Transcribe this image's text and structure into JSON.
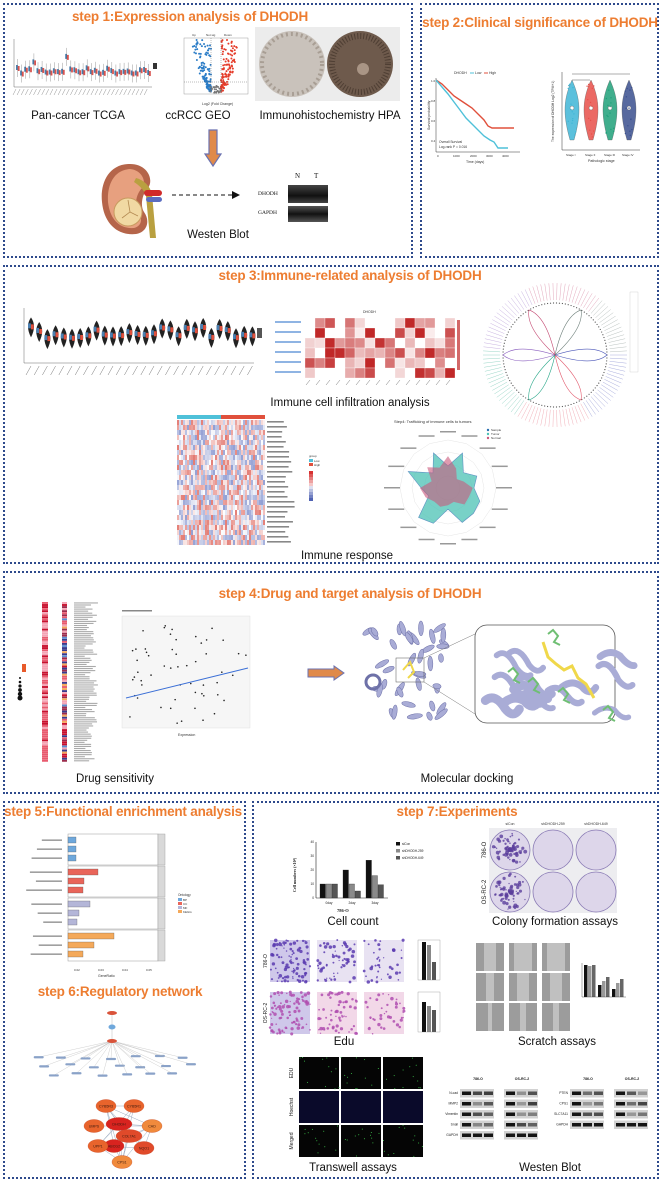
{
  "colors": {
    "accent": "#ed7d31",
    "border": "#2e4a8c",
    "low": "#4fc1d9",
    "high": "#e0503c",
    "protein": "#a9acd6",
    "ligand": "#f0d84a",
    "residue": "#6fbf73"
  },
  "step1": {
    "title": "step 1:Expression analysis of DHODH",
    "label_tcga": "Pan-cancer  TCGA",
    "label_geo": "ccRCC  GEO",
    "label_hpa": "Immunohistochemistry  HPA",
    "label_wb": "Westen Blot",
    "volcano_legend": [
      "Up",
      "Not sig",
      "Down"
    ],
    "volcano_xlabel": "Log2 (Fold Change)",
    "wb_lanes": [
      "N",
      "T"
    ],
    "wb_proteins": [
      "DHODH",
      "GAPDH"
    ]
  },
  "step2": {
    "title": "step 2:Clinical significance of DHODH",
    "km": {
      "legend_title": "DHODH",
      "groups": [
        "Low",
        "High"
      ],
      "annotation_1": "Overall Survival",
      "annotation_2": "Log-rank  P = 0.016",
      "xlabel": "Time (days)",
      "ylabel": "Survival probability",
      "xticks": [
        "0",
        "1000",
        "2000",
        "3000",
        "4000"
      ],
      "yticks": [
        "1.0",
        "0.8",
        "0.6",
        "0.4"
      ]
    },
    "violin": {
      "ylabel": "The expression of DHODH Log2 (TPM+1)",
      "xlabel": "Pathologic stage",
      "groups": [
        "Stage I",
        "Stage II",
        "Stage III",
        "Stage IV"
      ],
      "colors": [
        "#3fb6d6",
        "#e8504a",
        "#1fa07a",
        "#3a4f8f"
      ]
    }
  },
  "step3": {
    "title": "step 3:Immune-related analysis of DHODH",
    "label_infiltration": "Immune cell infiltration analysis",
    "label_response": "Immune response",
    "heatmap_title": "DHODH",
    "radar_title": "Step4: Trafficking of immune cells to tumors",
    "radar_legend": [
      "Sample",
      "Tumor",
      "Normal"
    ],
    "response_legend_title": "group",
    "response_groups": [
      "Low",
      "High"
    ]
  },
  "step4": {
    "title": "step 4:Drug and target analysis of DHODH",
    "label_drug": "Drug sensitivity",
    "label_docking": "Molecular docking",
    "scatter_xlabel": "Expression"
  },
  "step5": {
    "title": "step 5:Functional enrichment analysis",
    "xlabel": "GeneRatio",
    "xticks": [
      "0.02",
      "0.03",
      "0.04",
      "0.05"
    ],
    "legend_title": "Ontology",
    "ontologies": [
      "BP",
      "CC",
      "MF",
      "KEGG"
    ]
  },
  "step6": {
    "title": "step 6:Regulatory network",
    "ppi_nodes": [
      "CYB5R3",
      "CYB5R1",
      "UMPS",
      "DHODH",
      "CAD",
      "ABCG2",
      "COL7A1",
      "UPP1",
      "NQO1",
      "CPS1"
    ]
  },
  "step7": {
    "title": "step 7:Experiments",
    "label_cell_count": "Cell count",
    "label_colony": "Colony formation assays",
    "label_edu": "Edu",
    "label_scratch": "Scratch assays",
    "label_transwell": "Transwell assays",
    "label_wb": "Westen Blot",
    "groups": [
      "siCon",
      "shDHODH-259",
      "shDHODH-649"
    ],
    "cell_lines": [
      "786-O",
      "OS-RC-2"
    ],
    "cell_count": {
      "ylabel": "Cell numbers (×10⁴)",
      "xlabel": "786-O",
      "days": [
        "0day",
        "2day",
        "3day"
      ],
      "yticks": [
        "0",
        "10",
        "20",
        "30",
        "40"
      ],
      "values": [
        [
          10,
          10,
          10
        ],
        [
          20,
          10,
          5
        ],
        [
          27,
          16,
          9.5
        ]
      ]
    },
    "transwell_rows": [
      "EDU",
      "Hoechst",
      "Merged"
    ],
    "wb_left_proteins": [
      "N-cad",
      "MMP2",
      "Vimentin",
      "Snail",
      "GAPDH"
    ],
    "wb_right_proteins": [
      "PTEN",
      "CPS1",
      "SLC7A11",
      "GAPDH"
    ]
  }
}
